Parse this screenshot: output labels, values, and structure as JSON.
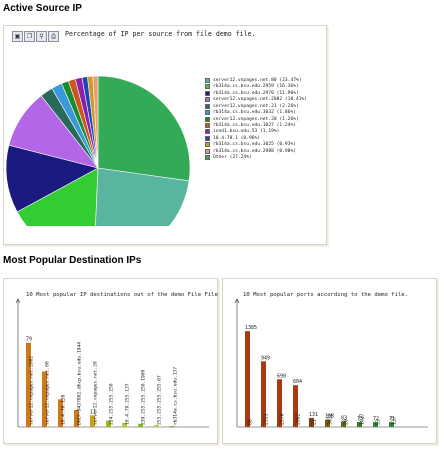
{
  "sections": {
    "active_source": {
      "title": "Active Source IP"
    },
    "popular_dest": {
      "title": "Most Popular Destination IPs"
    }
  },
  "toolbar": {
    "buttons": [
      {
        "name": "save-icon",
        "glyph": "▣"
      },
      {
        "name": "copy-icon",
        "glyph": "❐"
      },
      {
        "name": "zoom-icon",
        "glyph": "⚲"
      },
      {
        "name": "print-icon",
        "glyph": "⎙"
      }
    ]
  },
  "chart_data": [
    {
      "type": "pie",
      "title": "Percentage of IP per source from file demo file.",
      "slices": [
        {
          "label": "server12.vnpages.net.80 (23.47%)",
          "value": 23.47,
          "color": "#5ab5a0"
        },
        {
          "label": "rb314a.cs.bsu.edu.2959 (16.36%)",
          "value": 16.36,
          "color": "#33cc33"
        },
        {
          "label": "rb314a.cs.bsu.edu.2970 (11.90%)",
          "value": 11.9,
          "color": "#1a1a80"
        },
        {
          "label": "server12.vnpages.net.2082 (10.41%)",
          "value": 10.41,
          "color": "#b366e6"
        },
        {
          "label": "server12.vnpages.net.21 (2.26%)",
          "value": 2.26,
          "color": "#2a6a5a"
        },
        {
          "label": "rb314a.cs.bsu.edu.3032 (1.86%)",
          "value": 1.86,
          "color": "#3a9ad8"
        },
        {
          "label": "server12.vnpages.net.20 (1.26%)",
          "value": 1.26,
          "color": "#1a8a2a"
        },
        {
          "label": "rb314a.cs.bsu.edu.1027 (1.24%)",
          "value": 1.24,
          "color": "#cc5522"
        },
        {
          "label": "innd1.bsu.edu.53 (1.19%)",
          "value": 1.19,
          "color": "#8822aa"
        },
        {
          "label": "10.4.70.1 (0.96%)",
          "value": 0.96,
          "color": "#2244bb"
        },
        {
          "label": "rb314a.cs.bsu.edu.3025 (0.93%)",
          "value": 0.93,
          "color": "#cc9922"
        },
        {
          "label": "rb314a.cs.bsu.edu.2988 (0.90%)",
          "value": 0.9,
          "color": "#e0a070"
        },
        {
          "label": "Other (27.24%)",
          "value": 27.24,
          "color": "#33aa55"
        }
      ]
    },
    {
      "type": "bar",
      "title": "10 Most popular IP destinations out of the demo File File",
      "categories": [
        "server12.vnpages.net.2082",
        "server12.vnpages.net.80",
        "10.4.70.138",
        "DHCP-9437802.dhcp.bsu.edu.1944",
        "server12.vnpages.net.20",
        "224.255.255.250",
        "10.4.70.255.137",
        "239.255.255.250.1900",
        "255.255.255.255.67",
        "rb314a.cs.bsu.edu.137"
      ],
      "values": [
        79,
        52,
        26,
        16,
        11,
        6,
        4,
        3,
        2,
        1
      ],
      "value_labels": [
        "79",
        "",
        "",
        "",
        "11",
        "",
        "",
        "",
        "",
        ""
      ],
      "colors": [
        "#cc7a1a",
        "#cc7a1a",
        "#cc7a1a",
        "#cc7a1a",
        "#c8a418",
        "#a8b418",
        "#b8c838",
        "#8ab820",
        "#c0cc50",
        "#9aaa30"
      ],
      "ylim": [
        0,
        120
      ]
    },
    {
      "type": "bar",
      "title": "10 Most popular ports according to the demo file.",
      "categories": [
        "80",
        "2959",
        "2970",
        "2082",
        "21",
        "3032",
        "20",
        "1027",
        "53",
        "137"
      ],
      "values": [
        1385,
        949,
        690,
        604,
        131,
        108,
        83,
        73,
        72,
        71
      ],
      "value_labels": [
        "1385",
        "949",
        "690",
        "604",
        "131",
        "108",
        "83",
        "73",
        "72",
        "71"
      ],
      "colors": [
        "#a83a12",
        "#a83a12",
        "#a83a12",
        "#a83a12",
        "#8a3a12",
        "#7a5a12",
        "#5a6a12",
        "#3a7a2a",
        "#2a8a3a",
        "#2a8a3a"
      ],
      "ylim": [
        0,
        1850
      ]
    }
  ]
}
